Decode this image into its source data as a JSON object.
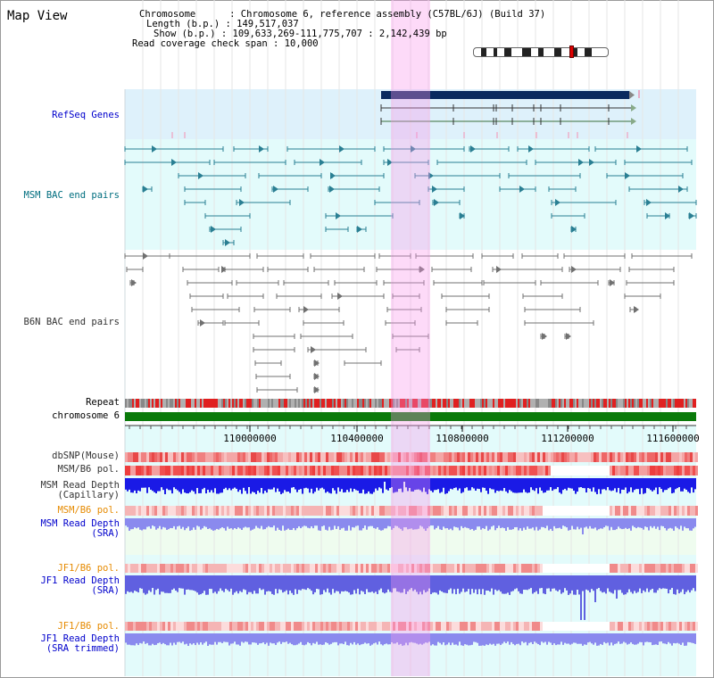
{
  "page": {
    "title": "Map View",
    "chromosome_label": "Chromosome",
    "chromosome_value": "Chromosome 6, reference assembly (C57BL/6J) (Build 37)",
    "length_label": "Length (b.p.)",
    "length_value": "149,517,037",
    "show_label": "Show (b.p.)",
    "show_value": "109,633,269-111,775,707 : 2,142,439 bp",
    "span_label": "Read coverage check span",
    "span_value": "10,000"
  },
  "tracks": {
    "refseq": "RefSeq Genes",
    "msm_bac": "MSM BAC end pairs",
    "b6n_bac": "B6N BAC end pairs",
    "repeat": "Repeat",
    "chrom": "chromosome 6",
    "dbsnp": "dbSNP(Mouse)",
    "msm_b6_pol": "MSM/B6 pol.",
    "msm_depth_cap": "MSM Read Depth\n(Capillary)",
    "msm_b6_pol2": "MSM/B6 pol.",
    "msm_depth_sra": "MSM Read Depth\n(SRA)",
    "jf1_b6_pol": "JF1/B6 pol.",
    "jf1_depth_sra": "JF1 Read Depth\n(SRA)",
    "jf1_b6_pol2": "JF1/B6 pol.",
    "jf1_depth_trim": "JF1 Read Depth\n(SRA trimmed)"
  },
  "axis": {
    "ticks": [
      "110000000",
      "110400000",
      "110800000",
      "111200000",
      "111600000"
    ]
  },
  "colors": {
    "highlight": "#f9b6ee",
    "gene": "#0a2a5e",
    "msm_bac": "#2a7f93",
    "b6n_bac": "#666666",
    "repeat_red": "#e02020",
    "chrom_green": "#0a7a0a",
    "depth_blue": "#1a1ae6"
  },
  "icons": {
    "ideogram": "chromosome-ideogram-icon",
    "marker": "position-marker-icon"
  }
}
